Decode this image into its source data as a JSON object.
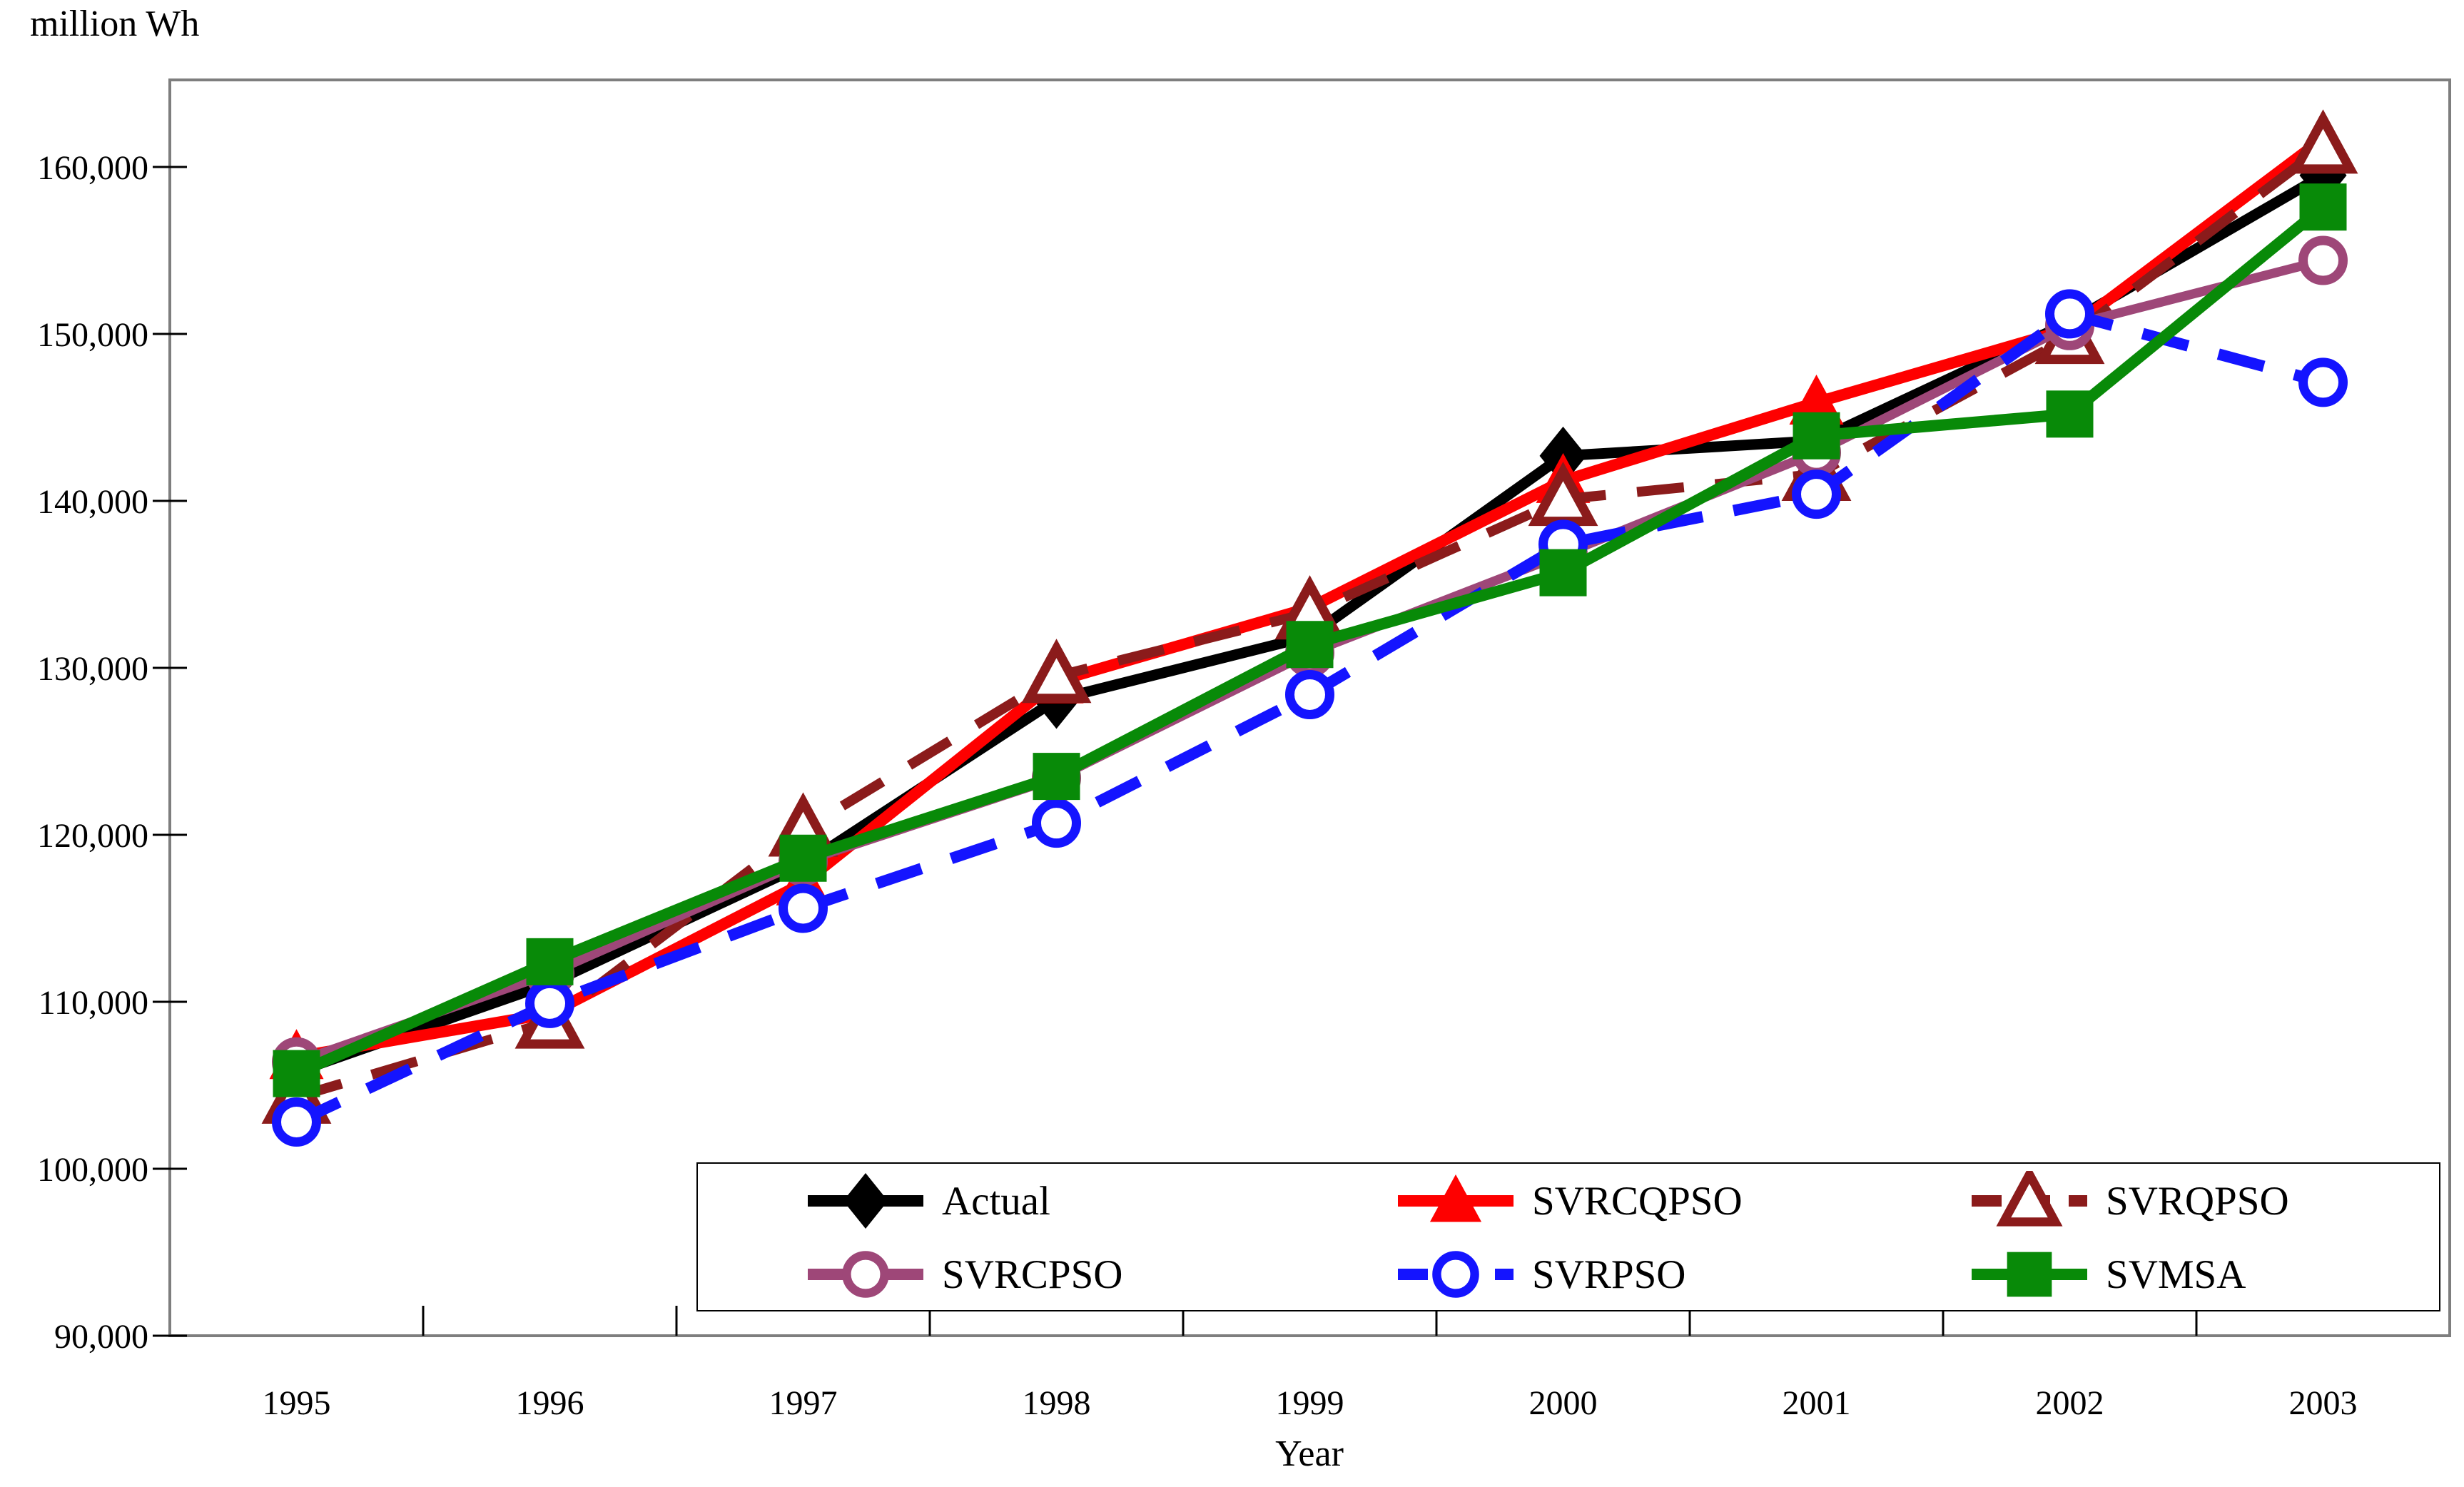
{
  "figure": {
    "y_axis_title": "million Wh",
    "x_axis_title": "Year"
  },
  "chart_data": {
    "type": "line",
    "title": "",
    "xlabel": "Year",
    "ylabel": "million Wh",
    "x": [
      "1995",
      "1996",
      "1997",
      "1998",
      "1999",
      "2000",
      "2001",
      "2002",
      "2003"
    ],
    "ylim": [
      90000,
      165000
    ],
    "y_tick_min": 90000,
    "y_tick_max": 160000,
    "y_tick_step": 10000,
    "y_tick_labels": [
      "90,000",
      "100,000",
      "110,000",
      "120,000",
      "130,000",
      "140,000",
      "150,000",
      "160,000"
    ],
    "grid": false,
    "legend_position": "bottom-inside",
    "plot_border_color": "#7e7e7e",
    "tick_color": "#000000",
    "series": [
      {
        "name": "Actual",
        "color": "#000000",
        "line_style": "solid",
        "marker": "diamond",
        "marker_fill": "filled",
        "values": [
          105800,
          111100,
          118200,
          128100,
          131900,
          142700,
          143600,
          150700,
          159500
        ]
      },
      {
        "name": "SVRCQPSO",
        "color": "#fe0000",
        "line_style": "solid",
        "marker": "triangle",
        "marker_fill": "filled",
        "values": [
          106700,
          109300,
          117100,
          129200,
          133600,
          141200,
          145900,
          150300,
          161700
        ]
      },
      {
        "name": "SVRQPSO",
        "color": "#8b1b1b",
        "line_style": "dashed",
        "marker": "triangle",
        "marker_fill": "open",
        "values": [
          104300,
          108800,
          120300,
          129500,
          133300,
          140100,
          141600,
          149800,
          161200
        ]
      },
      {
        "name": "SVRCPSO",
        "color": "#9e4778",
        "line_style": "solid",
        "marker": "circle",
        "marker_fill": "open",
        "values": [
          106400,
          111700,
          118400,
          123400,
          130900,
          136800,
          142900,
          150500,
          154400
        ]
      },
      {
        "name": "SVRPSO",
        "color": "#1414ff",
        "line_style": "dashed",
        "marker": "circle",
        "marker_fill": "open",
        "values": [
          102800,
          109900,
          115600,
          120700,
          128400,
          137400,
          140400,
          151200,
          147100
        ]
      },
      {
        "name": "SVMSA",
        "color": "#088a08",
        "line_style": "solid",
        "marker": "square",
        "marker_fill": "filled",
        "values": [
          105700,
          112400,
          118600,
          123500,
          131400,
          135700,
          143900,
          145200,
          157600
        ]
      }
    ]
  }
}
